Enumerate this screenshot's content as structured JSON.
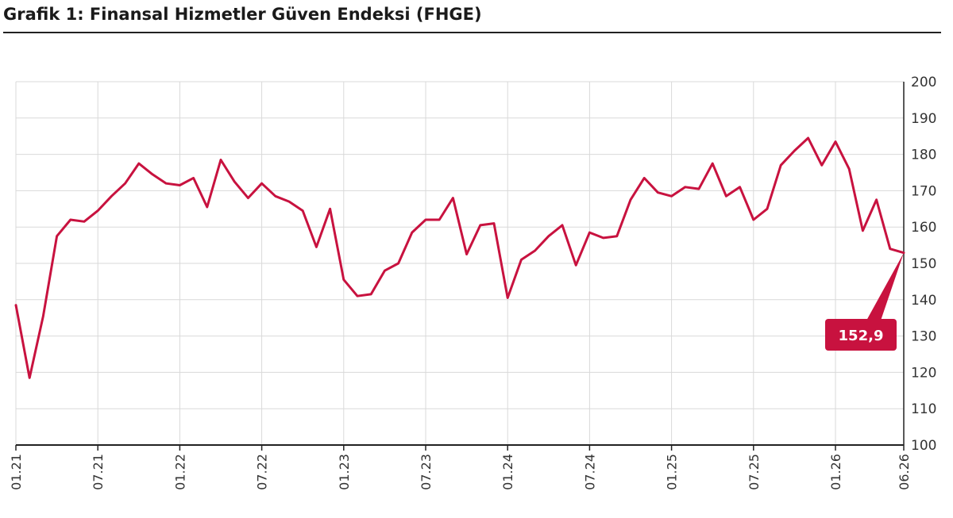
{
  "title": "Grafik 1: Finansal Hizmetler Güven Endeksi (FHGE)",
  "colors": {
    "line": "#c8123f",
    "grid": "#d9d9d9",
    "axis": "#222222"
  },
  "chart_data": {
    "type": "line",
    "title": "Grafik 1: Finansal Hizmetler Güven Endeksi (FHGE)",
    "xlabel": "",
    "ylabel": "",
    "ylim": [
      100,
      200
    ],
    "yticks": [
      100,
      110,
      120,
      130,
      140,
      150,
      160,
      170,
      180,
      190,
      200
    ],
    "y_axis_side": "right",
    "grid": true,
    "x_ticks": [
      "01.21",
      "07.21",
      "01.22",
      "07.22",
      "01.23",
      "07.23",
      "01.24",
      "07.24",
      "01.25",
      "07.25",
      "01.26",
      "06.26"
    ],
    "x_range": [
      "2021-01",
      "2026-06"
    ],
    "series": [
      {
        "name": "",
        "color": "#c8123f",
        "points": [
          [
            "2021-01",
            138.5
          ],
          [
            "2021-02",
            118.5
          ],
          [
            "2021-03",
            135.5
          ],
          [
            "2021-04",
            157.5
          ],
          [
            "2021-05",
            162.0
          ],
          [
            "2021-06",
            161.5
          ],
          [
            "2021-07",
            164.5
          ],
          [
            "2021-08",
            168.5
          ],
          [
            "2021-09",
            172.0
          ],
          [
            "2021-10",
            177.5
          ],
          [
            "2021-11",
            174.5
          ],
          [
            "2021-12",
            172.0
          ],
          [
            "2022-01",
            171.5
          ],
          [
            "2022-02",
            173.5
          ],
          [
            "2022-03",
            165.5
          ],
          [
            "2022-04",
            178.5
          ],
          [
            "2022-05",
            172.5
          ],
          [
            "2022-06",
            168.0
          ],
          [
            "2022-07",
            172.0
          ],
          [
            "2022-08",
            168.5
          ],
          [
            "2022-09",
            167.0
          ],
          [
            "2022-10",
            164.5
          ],
          [
            "2022-11",
            154.5
          ],
          [
            "2022-12",
            165.0
          ],
          [
            "2023-01",
            145.5
          ],
          [
            "2023-02",
            141.0
          ],
          [
            "2023-03",
            141.5
          ],
          [
            "2023-04",
            148.0
          ],
          [
            "2023-05",
            150.0
          ],
          [
            "2023-06",
            158.5
          ],
          [
            "2023-07",
            162.0
          ],
          [
            "2023-08",
            162.0
          ],
          [
            "2023-09",
            168.0
          ],
          [
            "2023-10",
            152.5
          ],
          [
            "2023-11",
            160.5
          ],
          [
            "2023-12",
            161.0
          ],
          [
            "2024-01",
            140.5
          ],
          [
            "2024-02",
            151.0
          ],
          [
            "2024-03",
            153.5
          ],
          [
            "2024-04",
            157.5
          ],
          [
            "2024-05",
            160.5
          ],
          [
            "2024-06",
            149.5
          ],
          [
            "2024-07",
            158.5
          ],
          [
            "2024-08",
            157.0
          ],
          [
            "2024-09",
            157.5
          ],
          [
            "2024-10",
            167.5
          ],
          [
            "2024-11",
            173.5
          ],
          [
            "2024-12",
            169.5
          ],
          [
            "2025-01",
            168.5
          ],
          [
            "2025-02",
            171.0
          ],
          [
            "2025-03",
            170.5
          ],
          [
            "2025-04",
            177.5
          ],
          [
            "2025-05",
            168.5
          ],
          [
            "2025-06",
            171.0
          ],
          [
            "2025-07",
            162.0
          ],
          [
            "2025-08",
            165.0
          ],
          [
            "2025-09",
            177.0
          ],
          [
            "2025-10",
            181.0
          ],
          [
            "2025-11",
            184.5
          ],
          [
            "2025-12",
            177.0
          ],
          [
            "2026-01",
            183.5
          ],
          [
            "2026-02",
            176.0
          ],
          [
            "2026-03",
            159.0
          ],
          [
            "2026-04",
            167.5
          ],
          [
            "2026-05",
            154.0
          ],
          [
            "2026-06",
            152.9
          ]
        ]
      }
    ],
    "annotations": [
      {
        "text": "152,9",
        "x": "2026-06",
        "y": 152.9,
        "style": "callout"
      }
    ]
  }
}
